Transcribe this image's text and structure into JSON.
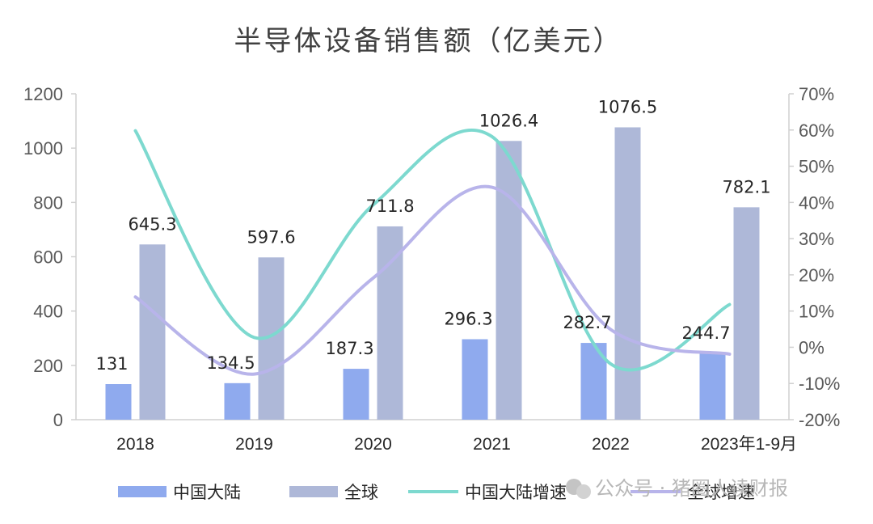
{
  "chart_data": {
    "type": "bar",
    "title": "半导体设备销售额（亿美元）",
    "categories": [
      "2018",
      "2019",
      "2020",
      "2021",
      "2022",
      "2023年1-9月"
    ],
    "series": [
      {
        "name": "中国大陆",
        "kind": "bar",
        "axis": "left",
        "color": "#8faaee",
        "values": [
          131,
          134.5,
          187.3,
          296.3,
          282.7,
          244.7
        ],
        "labels": [
          "131",
          "134.5",
          "187.3",
          "296.3",
          "282.7",
          "244.7"
        ]
      },
      {
        "name": "全球",
        "kind": "bar",
        "axis": "left",
        "color": "#aeb8d8",
        "values": [
          645.3,
          597.6,
          711.8,
          1026.4,
          1076.5,
          782.1
        ],
        "labels": [
          "645.3",
          "597.6",
          "711.8",
          "1026.4",
          "1076.5",
          "782.1"
        ]
      },
      {
        "name": "中国大陆增速",
        "kind": "line",
        "axis": "right",
        "color": "#7dd9cf",
        "values": [
          59.8,
          2.7,
          39.3,
          58.2,
          -4.6,
          11.8
        ]
      },
      {
        "name": "全球增速",
        "kind": "line",
        "axis": "right",
        "color": "#b8b4ea",
        "values": [
          13.9,
          -7.4,
          19.1,
          44.2,
          4.9,
          -1.9
        ]
      }
    ],
    "y_left": {
      "min": 0,
      "max": 1200,
      "step": 200,
      "ticks": [
        "0",
        "200",
        "400",
        "600",
        "800",
        "1000",
        "1200"
      ]
    },
    "y_right": {
      "min": -20,
      "max": 70,
      "step": 10,
      "ticks": [
        "-20%",
        "-10%",
        "0%",
        "10%",
        "20%",
        "30%",
        "40%",
        "50%",
        "60%",
        "70%"
      ]
    },
    "legend_position": "bottom",
    "grid": false
  },
  "watermark": "公众号 · 猪圈人读财报"
}
